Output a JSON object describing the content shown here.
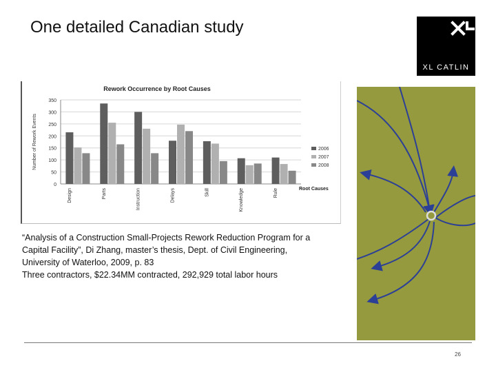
{
  "slide": {
    "title": "One detailed Canadian study",
    "page_number": "26"
  },
  "logo": {
    "text": "XL CATLIN",
    "mark": "XL"
  },
  "citation": {
    "lines": [
      "“Analysis of a Construction Small-Projects Rework Reduction Program for a",
      "Capital Facility”, Di Zhang, master’s thesis, Dept. of Civil Engineering,",
      "University of Waterloo, 2009, p. 83",
      "Three contractors, $22.34MM contracted, 292,929 total labor hours"
    ]
  },
  "colors": {
    "series_2006": "#5e5e5e",
    "series_2007": "#b0b0b0",
    "series_2008": "#888888",
    "panel_green": "#949a3d",
    "arrow_blue": "#2c3f96"
  },
  "chart_data": {
    "type": "bar",
    "title": "Rework Occurrence by Root Causes",
    "xlabel": "Root Causes",
    "ylabel": "Number of Rework Events",
    "ylim": [
      0,
      350
    ],
    "yticks": [
      0,
      50,
      100,
      150,
      200,
      250,
      300,
      350
    ],
    "categories": [
      "Design",
      "Parts",
      "Instruction",
      "Delays",
      "Skill",
      "Knowledge",
      "Rule"
    ],
    "series": [
      {
        "name": "2006",
        "values": [
          215,
          335,
          300,
          180,
          178,
          107,
          110
        ]
      },
      {
        "name": "2007",
        "values": [
          152,
          255,
          230,
          247,
          168,
          78,
          83
        ]
      },
      {
        "name": "2008",
        "values": [
          128,
          165,
          128,
          220,
          95,
          85,
          55
        ]
      }
    ],
    "legend_position": "right",
    "grid": true
  }
}
